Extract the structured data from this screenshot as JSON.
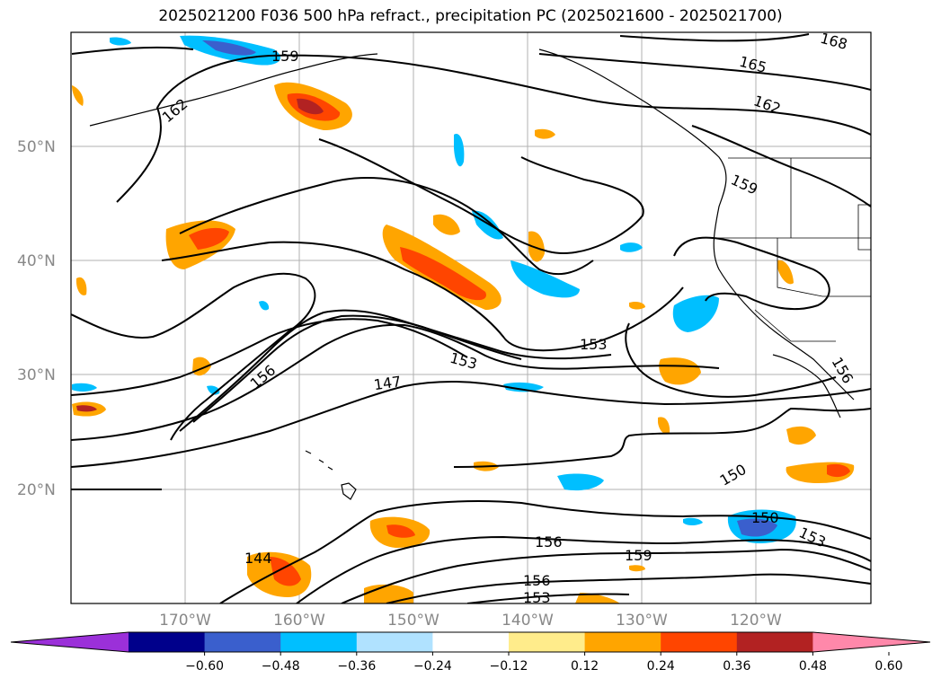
{
  "title": "2025021200 F036 500 hPa refract., precipitation PC (2025021600 - 2025021700)",
  "map": {
    "latitude_labels": [
      "50°N",
      "40°N",
      "30°N",
      "20°N"
    ],
    "longitude_labels": [
      "170°W",
      "160°W",
      "150°W",
      "140°W",
      "130°W",
      "120°W"
    ],
    "contour_labels": [
      "168",
      "165",
      "162",
      "162",
      "159",
      "159",
      "156",
      "156",
      "153",
      "153",
      "147",
      "150",
      "150",
      "153",
      "159",
      "156",
      "156",
      "153",
      "144"
    ],
    "contour_color": "#000000",
    "gridlines": true
  },
  "colorbar": {
    "colors": [
      "#9b30d9",
      "#00008b",
      "#3a5fcd",
      "#00bfff",
      "#b0e2ff",
      "#ffffff",
      "#ffec8b",
      "#ffa500",
      "#ff4500",
      "#b22222",
      "#ff88aa"
    ],
    "tick_labels": [
      "−0.60",
      "−0.48",
      "−0.36",
      "−0.24",
      "−0.12",
      "0.12",
      "0.24",
      "0.36",
      "0.48",
      "0.60"
    ],
    "extend": "both"
  }
}
